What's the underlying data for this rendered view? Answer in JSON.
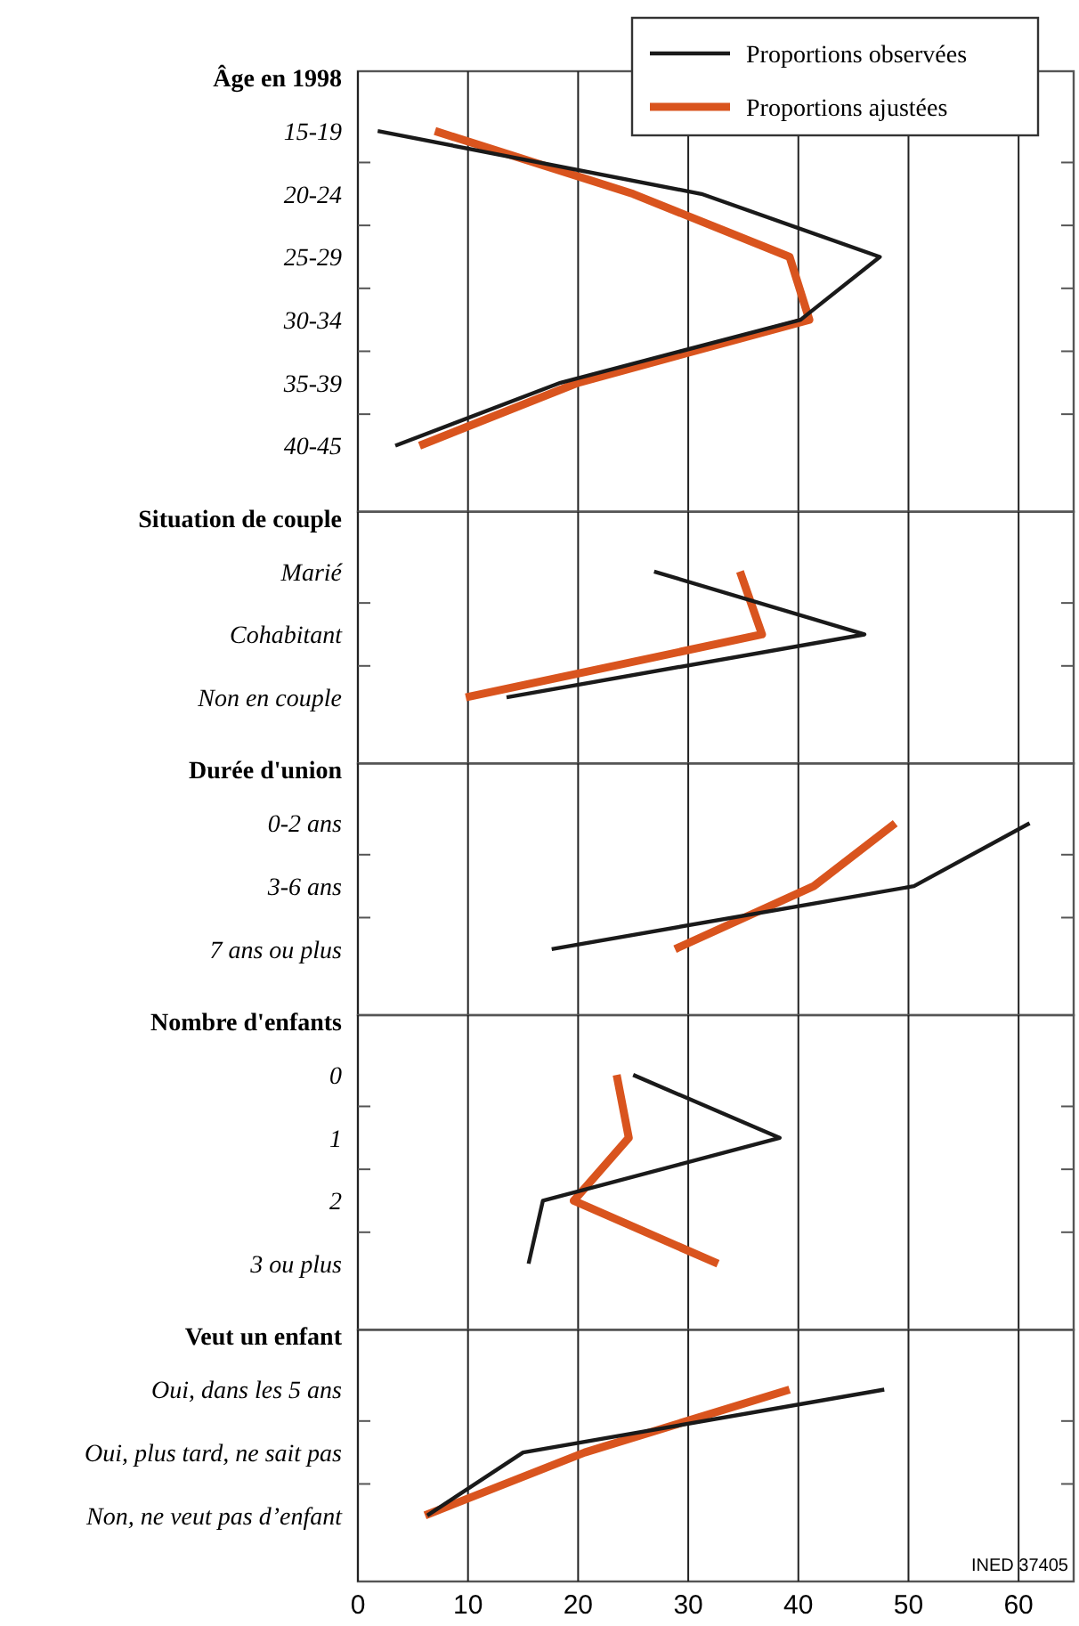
{
  "chart_data": [
    {
      "type": "line",
      "title": "Âge en 1998",
      "orientation": "horizontal",
      "categories": [
        "15-19",
        "20-24",
        "25-29",
        "30-34",
        "35-39",
        "40-45"
      ],
      "xlim": [
        0,
        65
      ],
      "xticks": [
        0,
        10,
        20,
        30,
        40,
        50,
        60
      ],
      "grid": "x",
      "tick_labels": "y",
      "legend": "top right",
      "series": [
        {
          "name": "Proportions observées",
          "color": "#1a1a1a",
          "values": [
            1.8,
            31.2,
            47.4,
            40.2,
            18.4,
            3.4
          ]
        },
        {
          "name": "Proportions ajustées",
          "color": "#d9541e",
          "values": [
            7,
            25,
            39.2,
            41,
            20,
            5.6
          ]
        }
      ]
    },
    {
      "type": "line",
      "title": "Situation de couple",
      "orientation": "horizontal",
      "categories": [
        "Marié",
        "Cohabitant",
        "Non en couple"
      ],
      "xlim": [
        0,
        65
      ],
      "xticks": [
        0,
        10,
        20,
        30,
        40,
        50,
        60
      ],
      "grid": "x",
      "tick_labels": "y",
      "series": [
        {
          "color": "#1a1a1a",
          "values": [
            26.9,
            46,
            13.5
          ]
        },
        {
          "color": "#d9541e",
          "values": [
            34.7,
            36.7,
            9.8
          ]
        }
      ]
    },
    {
      "type": "line",
      "title": "Durée d'union",
      "orientation": "horizontal",
      "categories": [
        "0-2 ans",
        "3-6 ans",
        "7 ans ou plus"
      ],
      "xlim": [
        0,
        65
      ],
      "xticks": [
        0,
        10,
        20,
        30,
        40,
        50,
        60
      ],
      "grid": "x",
      "tick_labels": "y",
      "series": [
        {
          "color": "#1a1a1a",
          "values": [
            61,
            50.5,
            17.6
          ]
        },
        {
          "color": "#d9541e",
          "values": [
            48.8,
            41.4,
            28.8
          ]
        }
      ]
    },
    {
      "type": "line",
      "title": "Nombre d'enfants",
      "orientation": "horizontal",
      "categories": [
        "0",
        "1",
        "2",
        "3 ou plus"
      ],
      "xlim": [
        0,
        65
      ],
      "xticks": [
        0,
        10,
        20,
        30,
        40,
        50,
        60
      ],
      "grid": "x",
      "tick_labels": "y",
      "series": [
        {
          "color": "#1a1a1a",
          "values": [
            25,
            38.3,
            16.8,
            15.5
          ]
        },
        {
          "color": "#d9541e",
          "values": [
            23.5,
            24.6,
            19.6,
            32.7
          ]
        }
      ]
    },
    {
      "type": "line",
      "title": "Veut un enfant",
      "orientation": "horizontal",
      "categories": [
        "Oui, dans les 5 ans",
        "Oui, plus tard, ne sait pas",
        "Non, ne veut pas d’enfant"
      ],
      "xlim": [
        0,
        65
      ],
      "xticks": [
        0,
        10,
        20,
        30,
        40,
        50,
        60
      ],
      "grid": "x",
      "annotations": [
        "INED 37405"
      ],
      "series": [
        {
          "color": "#1a1a1a",
          "values": [
            47.8,
            15,
            6.3
          ]
        },
        {
          "color": "#d9541e",
          "values": [
            39.2,
            20.6,
            6.1
          ]
        }
      ]
    }
  ]
}
